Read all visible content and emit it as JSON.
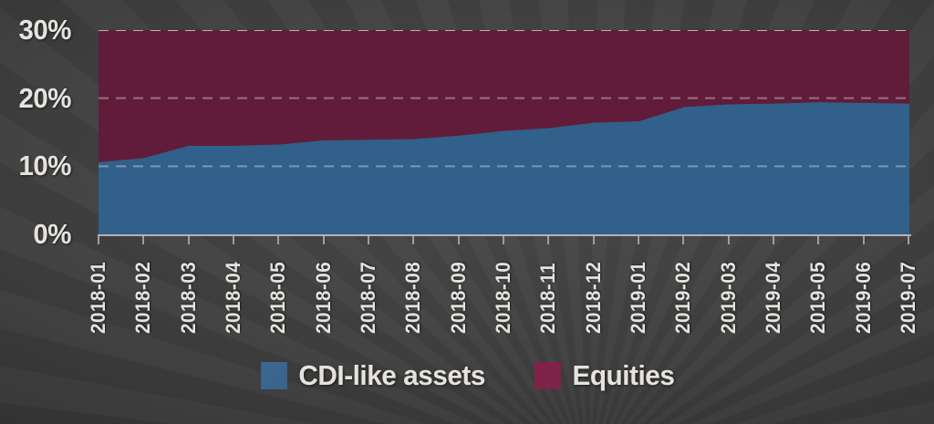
{
  "chart_data": {
    "type": "area",
    "stacked": true,
    "categories": [
      "2018-01",
      "2018-02",
      "2018-03",
      "2018-04",
      "2018-05",
      "2018-06",
      "2018-07",
      "2018-08",
      "2018-09",
      "2018-10",
      "2018-11",
      "2018-12",
      "2019-01",
      "2019-02",
      "2019-03",
      "2019-04",
      "2019-05",
      "2019-06",
      "2019-07"
    ],
    "series": [
      {
        "name": "CDI-like assets",
        "values": [
          10.6,
          11.2,
          13.0,
          13.0,
          13.2,
          13.8,
          13.9,
          14.0,
          14.5,
          15.2,
          15.6,
          16.4,
          16.6,
          18.7,
          19.1,
          19.2,
          19.4,
          19.3,
          19.2
        ]
      },
      {
        "name": "Equities",
        "values": [
          19.4,
          18.8,
          17.0,
          17.0,
          16.8,
          16.2,
          16.1,
          16.0,
          15.5,
          14.8,
          14.4,
          13.6,
          13.4,
          11.3,
          10.9,
          10.8,
          10.6,
          10.7,
          10.8
        ]
      }
    ],
    "stack_total_percent": 30,
    "ylim": [
      0,
      30
    ],
    "yticks": [
      {
        "value": 0,
        "label": "0%"
      },
      {
        "value": 10,
        "label": "10%"
      },
      {
        "value": 20,
        "label": "20%"
      },
      {
        "value": 30,
        "label": "30%"
      }
    ],
    "grid": {
      "style": "dashed",
      "horizontal_at": [
        10,
        20,
        30
      ]
    },
    "legend_position": "bottom",
    "title": "",
    "xlabel": "",
    "ylabel": ""
  },
  "legend": {
    "items": [
      {
        "label": "CDI-like assets",
        "swatch_color": "#3A6A96"
      },
      {
        "label": "Equities",
        "swatch_color": "#85204A"
      }
    ]
  },
  "colors": {
    "cdi_area": "#31608A",
    "equities_area": "#611C3A",
    "gridline": "#E8E4DF",
    "axis": "#C9C6C2",
    "text": "#E6E3DF",
    "background": "#3d3d3d"
  }
}
